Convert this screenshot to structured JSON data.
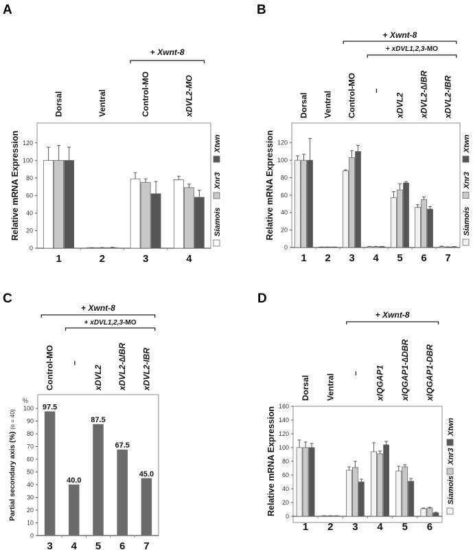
{
  "chart_data": [
    {
      "panel": "A",
      "type": "bar",
      "ylabel": "Relative mRNA Expression",
      "ylim": [
        0,
        130
      ],
      "yticks": [
        0,
        20,
        40,
        60,
        80,
        100,
        120
      ],
      "categories": [
        "1",
        "2",
        "3",
        "4"
      ],
      "column_labels": [
        {
          "text": "Dorsal",
          "italic": false
        },
        {
          "text": "Ventral",
          "italic": false
        },
        {
          "text": "Control-MO",
          "italic": false
        },
        {
          "text": "xDVL2-MO",
          "italic": "x"
        }
      ],
      "brackets": [
        {
          "label": "+ Xwnt-8",
          "from": 2,
          "to": 3,
          "level": 1
        }
      ],
      "series": [
        {
          "name": "Siamois",
          "color": "#ffffff",
          "values": [
            100,
            0.3,
            79,
            78
          ],
          "errors": [
            15,
            0.3,
            7,
            4
          ]
        },
        {
          "name": "Xnr3",
          "color": "#c8c8c8",
          "values": [
            100,
            0.5,
            75,
            69
          ],
          "errors": [
            17,
            0.3,
            4,
            4
          ]
        },
        {
          "name": "Xtwn",
          "color": "#555555",
          "values": [
            100,
            0.5,
            62,
            58
          ],
          "errors": [
            15,
            0.6,
            14,
            8
          ]
        }
      ]
    },
    {
      "panel": "B",
      "type": "bar",
      "ylabel": "Relative mRNA Expression",
      "ylim": [
        0,
        130
      ],
      "yticks": [
        0,
        20,
        40,
        60,
        80,
        100,
        120
      ],
      "categories": [
        "1",
        "2",
        "3",
        "4",
        "5",
        "6",
        "7"
      ],
      "column_labels": [
        {
          "text": "Dorsal"
        },
        {
          "text": "Ventral"
        },
        {
          "text": "Control-MO"
        },
        {
          "text": "—"
        },
        {
          "text": "xDVL2"
        },
        {
          "text": "xDVL2-∆IBR"
        },
        {
          "text": "xDVL2-IBR"
        }
      ],
      "brackets": [
        {
          "label": "+ Xwnt-8",
          "from": 2,
          "to": 6,
          "level": 1
        },
        {
          "label": "+ xDVL1,2,3-MO",
          "from": 3,
          "to": 6,
          "level": 2
        }
      ],
      "series": [
        {
          "name": "Siamois",
          "color": "#f2f2f2",
          "values": [
            100,
            0.3,
            88,
            1,
            57,
            46,
            1
          ],
          "errors": [
            5,
            0.2,
            1,
            0.3,
            7,
            3,
            0.5
          ]
        },
        {
          "name": "Xnr3",
          "color": "#c8c8c8",
          "values": [
            100,
            0.3,
            103,
            1,
            66,
            55,
            0.5
          ],
          "errors": [
            7,
            0.2,
            8,
            0.3,
            7,
            3,
            0.3
          ]
        },
        {
          "name": "Xtwn",
          "color": "#555555",
          "values": [
            100,
            0.3,
            110,
            1,
            74,
            44,
            0.8
          ],
          "errors": [
            25,
            0.2,
            7,
            0.3,
            1.5,
            3,
            0.3
          ]
        }
      ]
    },
    {
      "panel": "C",
      "type": "bar",
      "ylabel": "Partial secondary axis (%)",
      "ylabel_suffix": "(n = 40)",
      "yunit": "%",
      "ylim": [
        0,
        100
      ],
      "yticks": [
        0,
        10,
        20,
        30,
        40,
        50,
        60,
        70,
        80,
        90,
        100
      ],
      "categories": [
        "3",
        "4",
        "5",
        "6",
        "7"
      ],
      "column_labels": [
        {
          "text": "Control-MO"
        },
        {
          "text": "—"
        },
        {
          "text": "xDVL2"
        },
        {
          "text": "xDVL2-∆IBR"
        },
        {
          "text": "xDVL2-IBR"
        }
      ],
      "brackets": [
        {
          "label": "+ Xwnt-8",
          "from": 0,
          "to": 4,
          "level": 1
        },
        {
          "label": "+ xDVL1,2,3-MO",
          "from": 1,
          "to": 4,
          "level": 2
        }
      ],
      "series": [
        {
          "name": "Partial secondary axis",
          "color": "#6a6a6a",
          "values": [
            97.5,
            40.0,
            87.5,
            67.5,
            45.0
          ]
        }
      ],
      "data_labels": [
        "97.5",
        "40.0",
        "87.5",
        "67.5",
        "45.0"
      ]
    },
    {
      "panel": "D",
      "type": "bar",
      "ylabel": "Relative mRNA Expression",
      "ylim": [
        0,
        160
      ],
      "yticks": [
        0,
        20,
        40,
        60,
        80,
        100,
        120,
        140,
        160
      ],
      "categories": [
        "1",
        "2",
        "3",
        "4",
        "5",
        "6"
      ],
      "column_labels": [
        {
          "text": "Dorsal"
        },
        {
          "text": "Ventral"
        },
        {
          "text": "—"
        },
        {
          "text": "xIQGAP1"
        },
        {
          "text": "xIQGAP1-∆DBR"
        },
        {
          "text": "xIQGAP1-DBR"
        }
      ],
      "brackets": [
        {
          "label": "+ Xwnt-8",
          "from": 2,
          "to": 5,
          "level": 1
        }
      ],
      "series": [
        {
          "name": "Siamois",
          "color": "#f2f2f2",
          "values": [
            100,
            0.5,
            67,
            94,
            66,
            11
          ],
          "errors": [
            11,
            0.3,
            5,
            13,
            7,
            1
          ]
        },
        {
          "name": "Xnr3",
          "color": "#c8c8c8",
          "values": [
            100,
            0.5,
            71,
            91,
            72,
            12
          ],
          "errors": [
            8,
            0.3,
            9,
            4,
            3,
            1
          ]
        },
        {
          "name": "Xtwn",
          "color": "#555555",
          "values": [
            100,
            0.5,
            50,
            104,
            51,
            5
          ],
          "errors": [
            6,
            0.3,
            4,
            5,
            4,
            1
          ]
        }
      ]
    }
  ],
  "panels": {
    "A": "A",
    "B": "B",
    "C": "C",
    "D": "D"
  },
  "legend": [
    "Siamois",
    "Xnr3",
    "Xtwn"
  ]
}
